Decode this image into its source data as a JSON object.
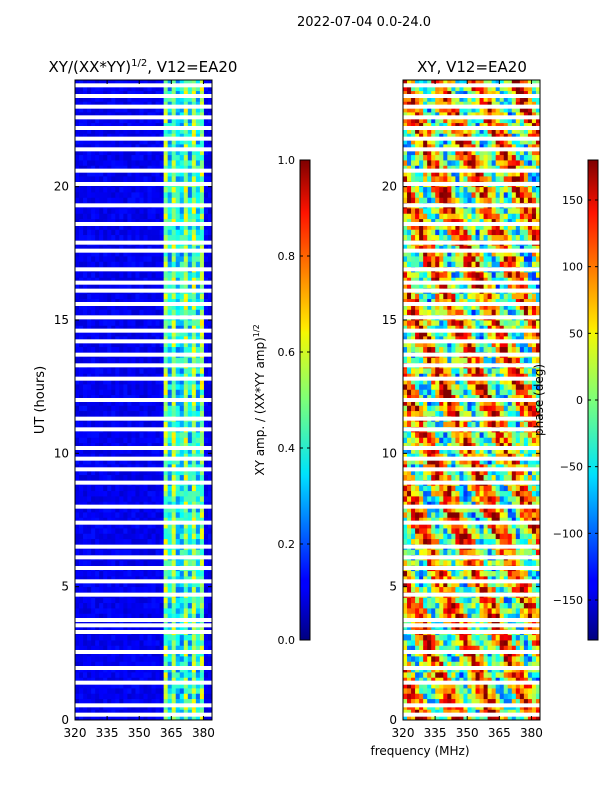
{
  "suptitle": "2022-07-04 0.0-24.0",
  "xlabel_shared": "frequency (MHz)",
  "chart_data": [
    {
      "type": "heatmap",
      "title_main": "XY/(XX*YY)",
      "title_sup": "1/2",
      "title_tail": ", V12=EA20",
      "ylabel": "UT (hours)",
      "xlim": [
        320,
        384
      ],
      "ylim": [
        0,
        24
      ],
      "xticks": [
        320,
        335,
        350,
        365,
        380
      ],
      "yticks": [
        0,
        5,
        10,
        15,
        20
      ],
      "colorbar": {
        "label_main": "XY amp. / (XX*YY amp)",
        "label_sup": "1/2",
        "range": [
          0.0,
          1.0
        ],
        "ticks": [
          "0.0",
          "0.2",
          "0.4",
          "0.6",
          "0.8",
          "1.0"
        ],
        "tick_values": [
          0.0,
          0.2,
          0.4,
          0.6,
          0.8,
          1.0
        ],
        "colormap": "jet"
      },
      "active_band_mhz": [
        361,
        381
      ],
      "flagged_gaps_ut": [
        0.2,
        0.55,
        1.4,
        1.95,
        2.55,
        3.3,
        3.55,
        3.75,
        4.7,
        5.2,
        5.7,
        6.1,
        6.5,
        7.4,
        8.0,
        8.9,
        9.4,
        9.8,
        10.2,
        10.9,
        11.3,
        12.0,
        12.8,
        13.3,
        13.7,
        14.2,
        14.6,
        15.1,
        15.6,
        16.1,
        16.4,
        16.9,
        17.6,
        17.9,
        18.6,
        19.3,
        20.1,
        20.6,
        21.4,
        21.8,
        22.2,
        22.6,
        23.0,
        23.4,
        23.8
      ]
    },
    {
      "type": "heatmap",
      "title": "XY, V12=EA20",
      "xlim": [
        320,
        384
      ],
      "ylim": [
        0,
        24
      ],
      "xticks": [
        320,
        335,
        350,
        365,
        380
      ],
      "yticks": [
        0,
        5,
        10,
        15,
        20
      ],
      "colorbar": {
        "label": "phase (deg)",
        "range": [
          -180,
          180
        ],
        "ticks": [
          "−150",
          "−100",
          "−50",
          "0",
          "50",
          "100",
          "150"
        ],
        "tick_values": [
          -150,
          -100,
          -50,
          0,
          50,
          100,
          150
        ],
        "colormap": "jet"
      },
      "flagged_gaps_ut": [
        0.2,
        0.55,
        1.4,
        1.95,
        2.55,
        3.3,
        3.55,
        3.75,
        4.7,
        5.2,
        5.7,
        6.1,
        6.5,
        7.4,
        8.0,
        8.9,
        9.4,
        9.8,
        10.2,
        10.9,
        11.3,
        12.0,
        12.8,
        13.3,
        13.7,
        14.2,
        14.6,
        15.1,
        15.6,
        16.1,
        16.4,
        16.9,
        17.6,
        17.9,
        18.6,
        19.3,
        20.1,
        20.6,
        21.4,
        21.8,
        22.2,
        22.6,
        23.0,
        23.4,
        23.8
      ]
    }
  ]
}
